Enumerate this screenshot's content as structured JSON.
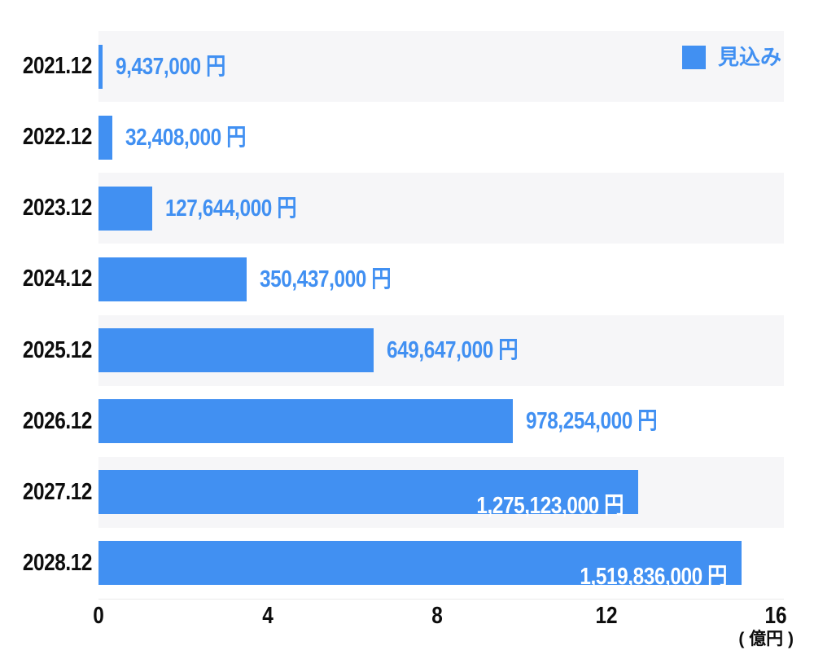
{
  "chart_data": {
    "type": "bar",
    "orientation": "horizontal",
    "title": "",
    "categories": [
      "2021.12",
      "2022.12",
      "2023.12",
      "2024.12",
      "2025.12",
      "2026.12",
      "2027.12",
      "2028.12"
    ],
    "series": [
      {
        "name": "見込み",
        "values_yen": [
          9437000,
          32408000,
          127644000,
          350437000,
          649647000,
          978254000,
          1275123000,
          1519836000
        ],
        "values_oku_en": [
          0.094,
          0.324,
          1.276,
          3.504,
          6.496,
          9.783,
          12.751,
          15.198
        ]
      }
    ],
    "value_labels": [
      "9,437,000 円",
      "32,408,000 円",
      "127,644,000 円",
      "350,437,000 円",
      "649,647,000 円",
      "978,254,000 円",
      "1,275,123,000 円",
      "1,519,836,000 円"
    ],
    "value_label_position": [
      "outside",
      "outside",
      "outside",
      "outside",
      "outside",
      "outside",
      "inside",
      "inside"
    ],
    "x_axis": {
      "ticks": [
        0,
        4,
        8,
        12,
        16
      ],
      "tick_labels": [
        "0",
        "4",
        "8",
        "12",
        "16"
      ],
      "unit": "( 億円 )",
      "range_oku_en": [
        0,
        16.2
      ]
    },
    "legend": {
      "label": "見込み",
      "position": "top-right"
    },
    "grid": false,
    "row_banding": "alternating, odd rows shaded"
  },
  "colors": {
    "bar": "#4190f2",
    "value_text": "#4190f2",
    "inside_text": "#ffffff",
    "band": "#f6f6f8",
    "axis_text": "#0d0d0d",
    "axis_line": "#ebebeb",
    "background": "#ffffff"
  }
}
